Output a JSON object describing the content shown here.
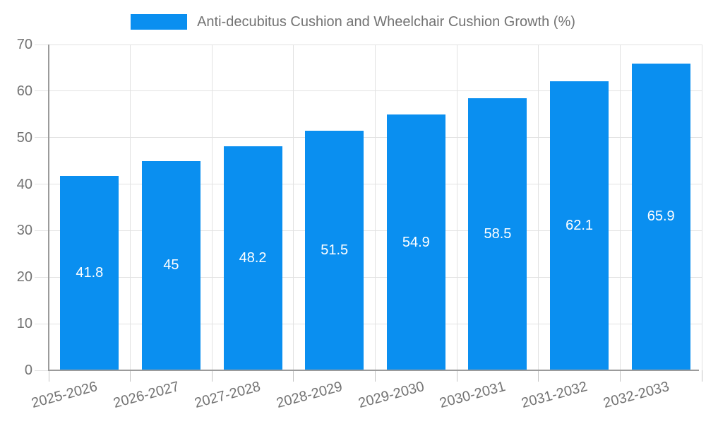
{
  "legend": {
    "label": "Anti-decubitus Cushion and Wheelchair Cushion Growth (%)"
  },
  "chart_data": {
    "type": "bar",
    "title": "Anti-decubitus Cushion and Wheelchair Cushion Growth (%)",
    "categories": [
      "2025-2026",
      "2026-2027",
      "2027-2028",
      "2028-2029",
      "2029-2030",
      "2030-2031",
      "2031-2032",
      "2032-2033"
    ],
    "values": [
      41.8,
      45,
      48.2,
      51.5,
      54.9,
      58.5,
      62.1,
      65.9
    ],
    "value_labels": [
      "41.8",
      "45",
      "48.2",
      "51.5",
      "54.9",
      "58.5",
      "62.1",
      "65.9"
    ],
    "xlabel": "",
    "ylabel": "",
    "ylim": [
      0,
      70
    ],
    "yticks": [
      0,
      10,
      20,
      30,
      40,
      50,
      60,
      70
    ],
    "grid": true,
    "legend_position": "top-center",
    "colors": {
      "bar": "#0a8ff0",
      "value_label_text": "#ffffff",
      "axis_text": "#737373",
      "gridline": "#e2e2e2",
      "axis_line": "#9b9b9b",
      "tick": "#c4c4c4",
      "background": "#ffffff"
    }
  }
}
